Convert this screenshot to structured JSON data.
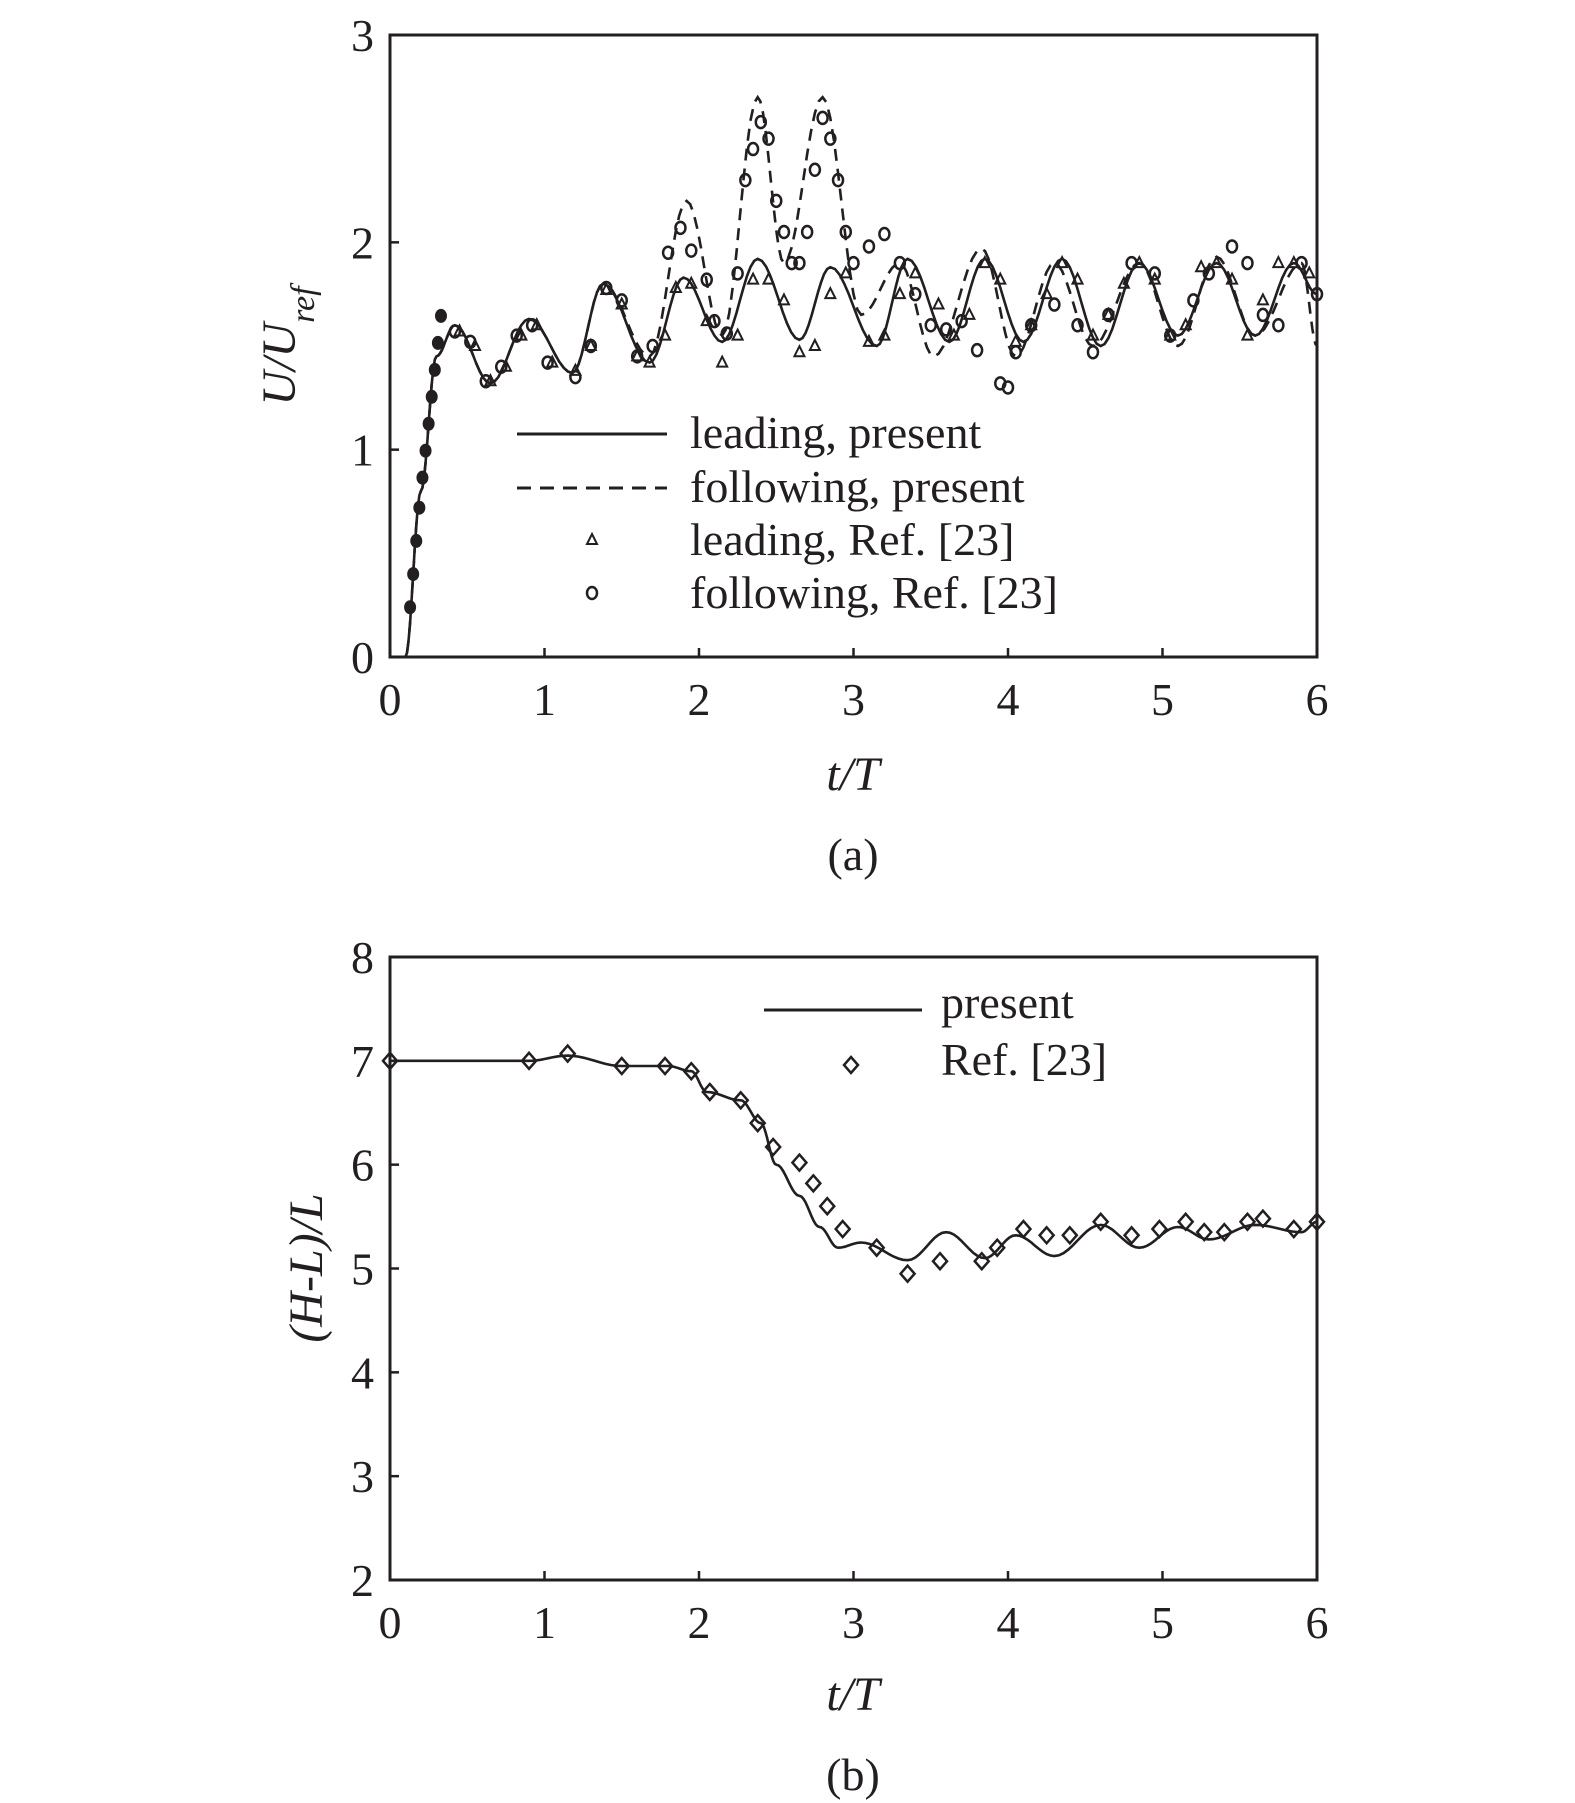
{
  "chart_data": [
    {
      "type": "line",
      "caption": "(a)",
      "xlabel": "t/T",
      "ylabel_main": "U/U",
      "ylabel_sub": "ref",
      "xlim": [
        0,
        6
      ],
      "ylim": [
        0,
        3
      ],
      "xticks": [
        "0",
        "1",
        "2",
        "3",
        "4",
        "5",
        "6"
      ],
      "yticks": [
        "0",
        "1",
        "2",
        "3"
      ],
      "grid": false,
      "legend_position": "center",
      "series": [
        {
          "name": "leading, present",
          "style": "solid",
          "x": [
            0,
            0.1,
            0.2,
            0.3,
            0.42,
            0.65,
            0.9,
            1.18,
            1.38,
            1.68,
            1.9,
            2.15,
            2.38,
            2.65,
            2.85,
            3.15,
            3.35,
            3.62,
            3.85,
            4.1,
            4.35,
            4.6,
            4.85,
            5.1,
            5.35,
            5.6,
            5.85,
            6.0
          ],
          "y": [
            0,
            0,
            0.8,
            1.45,
            1.6,
            1.32,
            1.63,
            1.37,
            1.8,
            1.42,
            1.83,
            1.52,
            1.92,
            1.53,
            1.88,
            1.5,
            1.92,
            1.52,
            1.92,
            1.52,
            1.92,
            1.5,
            1.9,
            1.55,
            1.9,
            1.55,
            1.9,
            1.75
          ]
        },
        {
          "name": "following, present",
          "style": "dashed",
          "x": [
            0,
            0.1,
            0.2,
            0.3,
            0.42,
            0.65,
            0.9,
            1.18,
            1.38,
            1.68,
            1.92,
            2.15,
            2.38,
            2.55,
            2.8,
            3.05,
            3.3,
            3.52,
            3.83,
            4.05,
            4.3,
            4.55,
            4.85,
            5.1,
            5.35,
            5.6,
            5.9,
            6.0
          ],
          "y": [
            0,
            0,
            0.8,
            1.45,
            1.6,
            1.32,
            1.63,
            1.37,
            1.8,
            1.45,
            2.2,
            1.55,
            2.7,
            1.9,
            2.7,
            1.65,
            1.9,
            1.45,
            1.97,
            1.45,
            1.9,
            1.5,
            1.9,
            1.5,
            1.93,
            1.55,
            1.9,
            1.5
          ]
        },
        {
          "name": "leading, Ref. [23]",
          "marker": "triangle",
          "x": [
            0.45,
            0.55,
            0.65,
            0.75,
            0.85,
            0.95,
            1.05,
            1.2,
            1.3,
            1.4,
            1.5,
            1.6,
            1.68,
            1.78,
            1.85,
            1.95,
            2.05,
            2.15,
            2.25,
            2.35,
            2.45,
            2.55,
            2.65,
            2.75,
            2.85,
            2.95,
            3.1,
            3.2,
            3.3,
            3.4,
            3.55,
            3.65,
            3.75,
            3.85,
            3.95,
            4.05,
            4.15,
            4.25,
            4.35,
            4.45,
            4.55,
            4.65,
            4.75,
            4.85,
            4.95,
            5.05,
            5.15,
            5.25,
            5.35,
            5.45,
            5.55,
            5.65,
            5.75,
            5.85,
            5.95
          ],
          "y": [
            1.57,
            1.5,
            1.33,
            1.4,
            1.55,
            1.6,
            1.42,
            1.38,
            1.5,
            1.77,
            1.7,
            1.45,
            1.42,
            1.55,
            1.78,
            1.8,
            1.62,
            1.42,
            1.55,
            1.82,
            1.82,
            1.72,
            1.47,
            1.5,
            1.75,
            1.85,
            1.52,
            1.55,
            1.75,
            1.85,
            1.7,
            1.55,
            1.65,
            1.9,
            1.82,
            1.52,
            1.6,
            1.75,
            1.9,
            1.82,
            1.55,
            1.65,
            1.8,
            1.9,
            1.82,
            1.55,
            1.6,
            1.88,
            1.9,
            1.82,
            1.55,
            1.72,
            1.9,
            1.9,
            1.85
          ]
        },
        {
          "name": "following, Ref. [23]",
          "marker": "circle",
          "x": [
            0.42,
            0.52,
            0.62,
            0.72,
            0.82,
            0.92,
            1.02,
            1.2,
            1.3,
            1.4,
            1.5,
            1.6,
            1.7,
            1.8,
            1.88,
            1.95,
            2.05,
            2.1,
            2.18,
            2.25,
            2.3,
            2.35,
            2.4,
            2.45,
            2.5,
            2.55,
            2.6,
            2.65,
            2.7,
            2.75,
            2.8,
            2.85,
            2.9,
            2.95,
            3.0,
            3.1,
            3.2,
            3.3,
            3.4,
            3.5,
            3.6,
            3.7,
            3.8,
            3.95,
            4.0,
            4.05,
            4.15,
            4.3,
            4.45,
            4.55,
            4.65,
            4.8,
            4.95,
            5.05,
            5.2,
            5.3,
            5.45,
            5.55,
            5.65,
            5.75,
            5.9,
            6.0
          ],
          "y": [
            1.57,
            1.52,
            1.33,
            1.4,
            1.55,
            1.6,
            1.42,
            1.35,
            1.5,
            1.78,
            1.72,
            1.45,
            1.5,
            1.95,
            2.07,
            1.96,
            1.82,
            1.62,
            1.56,
            1.85,
            2.3,
            2.45,
            2.58,
            2.5,
            2.2,
            2.05,
            1.9,
            1.9,
            2.05,
            2.35,
            2.6,
            2.5,
            2.3,
            2.05,
            1.9,
            1.98,
            2.04,
            1.9,
            1.75,
            1.6,
            1.58,
            1.62,
            1.48,
            1.32,
            1.3,
            1.47,
            1.6,
            1.7,
            1.6,
            1.47,
            1.65,
            1.9,
            1.85,
            1.55,
            1.72,
            1.85,
            1.98,
            1.9,
            1.65,
            1.6,
            1.9,
            1.75
          ]
        }
      ]
    },
    {
      "type": "line",
      "caption": "(b)",
      "xlabel": "t/T",
      "ylabel": "(H-L)/L",
      "xlim": [
        0,
        6
      ],
      "ylim": [
        2,
        8
      ],
      "xticks": [
        "0",
        "1",
        "2",
        "3",
        "4",
        "5",
        "6"
      ],
      "yticks": [
        "2",
        "3",
        "4",
        "5",
        "6",
        "7",
        "8"
      ],
      "grid": false,
      "legend_position": "top-right",
      "series": [
        {
          "name": "present",
          "style": "solid",
          "x": [
            0,
            0.9,
            1.15,
            1.5,
            1.8,
            1.95,
            2.05,
            2.27,
            2.4,
            2.5,
            2.65,
            2.78,
            2.9,
            3.05,
            3.35,
            3.6,
            3.85,
            4.05,
            4.3,
            4.6,
            4.85,
            5.1,
            5.3,
            5.6,
            5.9,
            6.0
          ],
          "y": [
            7.0,
            7.0,
            7.05,
            6.95,
            6.95,
            6.9,
            6.7,
            6.62,
            6.4,
            6.0,
            5.7,
            5.4,
            5.2,
            5.25,
            5.08,
            5.35,
            5.1,
            5.32,
            5.12,
            5.42,
            5.2,
            5.4,
            5.28,
            5.42,
            5.35,
            5.45
          ]
        },
        {
          "name": "Ref. [23]",
          "marker": "diamond",
          "x": [
            0,
            0.9,
            1.15,
            1.5,
            1.78,
            1.95,
            2.07,
            2.27,
            2.38,
            2.48,
            2.65,
            2.74,
            2.83,
            2.93,
            3.15,
            3.35,
            3.56,
            3.83,
            3.93,
            4.1,
            4.25,
            4.4,
            4.6,
            4.8,
            4.98,
            5.15,
            5.27,
            5.4,
            5.55,
            5.65,
            5.85,
            6.0
          ],
          "y": [
            7.0,
            7.0,
            7.07,
            6.95,
            6.95,
            6.9,
            6.7,
            6.62,
            6.4,
            6.17,
            6.02,
            5.82,
            5.6,
            5.38,
            5.2,
            4.95,
            5.07,
            5.07,
            5.2,
            5.38,
            5.32,
            5.32,
            5.45,
            5.32,
            5.38,
            5.45,
            5.35,
            5.35,
            5.45,
            5.48,
            5.38,
            5.45
          ]
        }
      ]
    }
  ]
}
